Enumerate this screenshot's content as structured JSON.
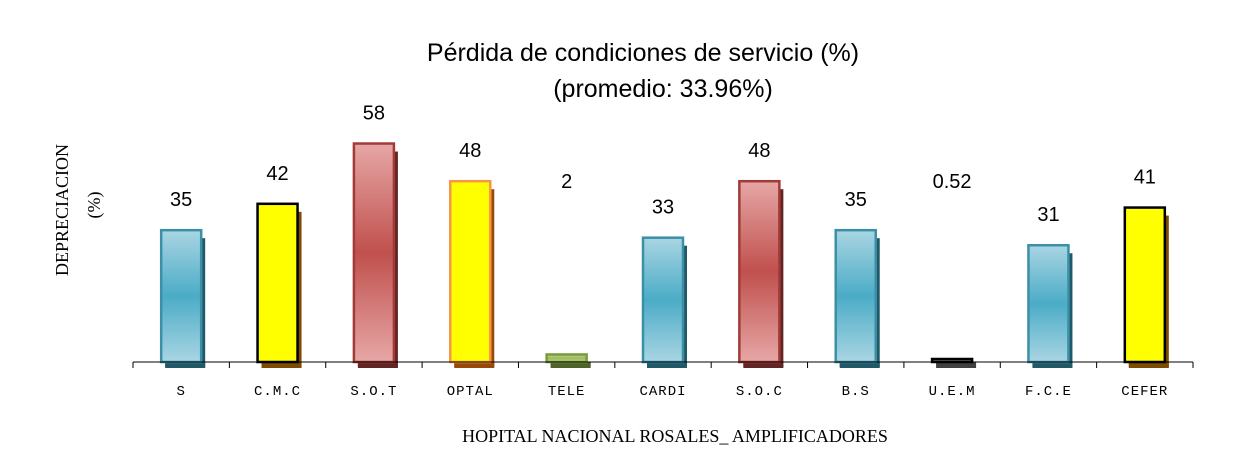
{
  "chart_data": {
    "type": "bar",
    "title": "Pérdida de condiciones de servicio (%)",
    "subtitle": "(promedio:  33.96%)",
    "xlabel": "HOPITAL NACIONAL ROSALES_ AMPLIFICADORES",
    "ylabel": "DEPRECIACION",
    "ylabel_unit": "(%)",
    "categories": [
      "S",
      "C.M.C",
      "S.O.T",
      "OPTAL",
      "TELE",
      "CARDI",
      "S.O.C",
      "B.S",
      "U.E.M",
      "F.C.E",
      "CEFER"
    ],
    "values": [
      35,
      42,
      58,
      48,
      2,
      33,
      48,
      35,
      0.52,
      31,
      41
    ],
    "value_labels": [
      "35",
      "42",
      "58",
      "48",
      "2",
      "33",
      "48",
      "35",
      "0.52",
      "31",
      "41"
    ],
    "ylim": [
      0,
      60
    ],
    "grid": false,
    "legend": "none",
    "bar_styles": [
      "blue",
      "yellow",
      "red",
      "yellow-orange",
      "green",
      "blue",
      "red",
      "blue",
      "gray",
      "blue",
      "yellow"
    ],
    "colors": {
      "blue": "#4bacc6",
      "yellow": "#ffff00",
      "red": "#c0504d",
      "green": "#9bbb59",
      "gray": "#7f7f7f",
      "orange": "#f79646"
    }
  }
}
